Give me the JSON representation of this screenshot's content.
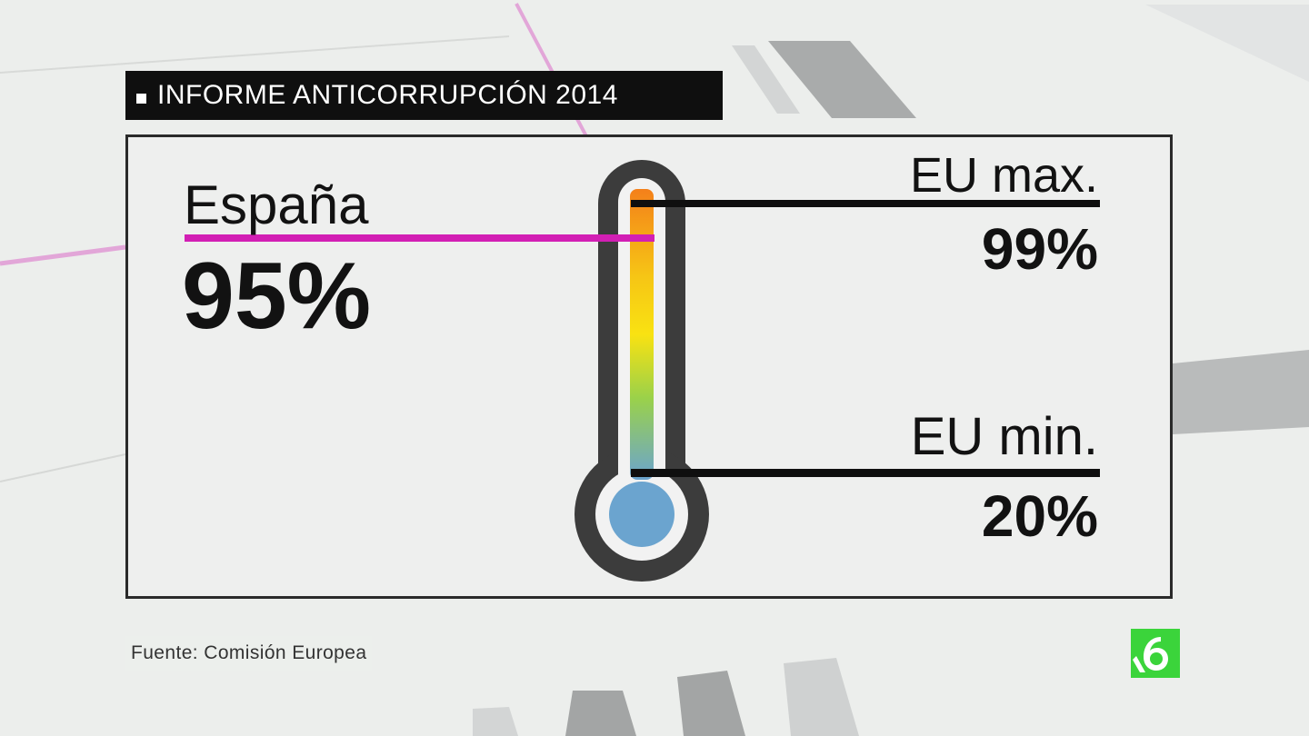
{
  "title": "INFORME ANTICORRUPCIÓN 2014",
  "spain": {
    "label": "España",
    "value": "95%",
    "level": 0.95
  },
  "eu_max": {
    "label": "EU max.",
    "value": "99%",
    "level": 0.99
  },
  "eu_min": {
    "label": "EU min.",
    "value": "20%",
    "level": 0.2
  },
  "source": "Fuente: Comisión Europea",
  "colors": {
    "accent_line": "#d21fb4",
    "title_bg": "#0f0f0f",
    "thermo_outline": "#3c3c3c",
    "bulb": "#6ba4cf",
    "gradient": [
      "#f4801a",
      "#f6c515",
      "#f9e212",
      "#9ad14a",
      "#6ba4cf"
    ],
    "logo": "#3bd43b"
  },
  "icons": {
    "logo": "la-sexta-logo",
    "title_bullet": "square-bullet"
  }
}
